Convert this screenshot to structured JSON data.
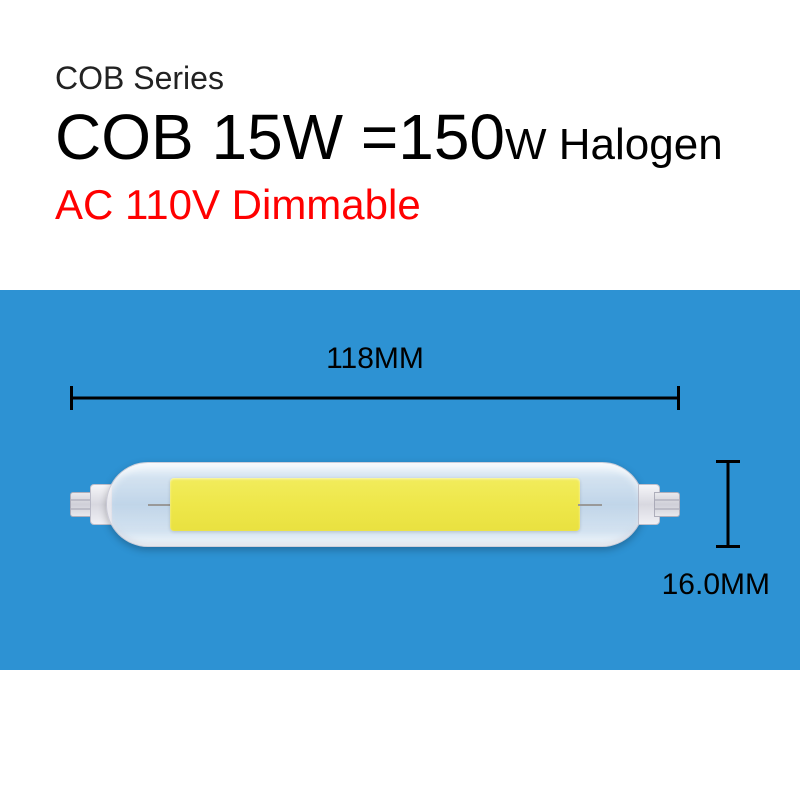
{
  "header": {
    "series_label": "COB Series",
    "title_cob": "COB 15W",
    "title_eq": " =",
    "title_halogen_num": "150",
    "title_w": "W",
    "title_halogen": " Halogen",
    "voltage_line": "AC 110V  Dimmable"
  },
  "diagram": {
    "background_color": "#2d92d3",
    "width_label": "118MM",
    "height_label": "16.0MM",
    "bulb": {
      "cob_color_top": "#f2ec5c",
      "cob_color_bottom": "#e9e140",
      "tube_highlight": "#ffffff",
      "tube_shadow": "#d8d8e0"
    },
    "ruler_color": "#000000"
  },
  "colors": {
    "text_black": "#000000",
    "text_red": "#ff0000",
    "page_bg": "#ffffff"
  },
  "typography": {
    "series_fontsize": 32,
    "title_big_fontsize": 64,
    "title_med_fontsize": 44,
    "voltage_fontsize": 42,
    "dim_label_fontsize": 30
  }
}
